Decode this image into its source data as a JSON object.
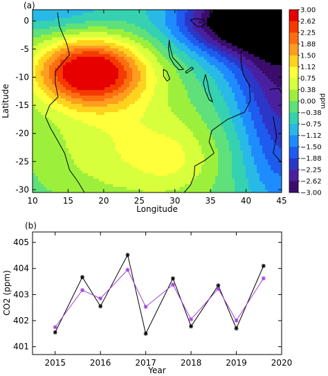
{
  "chart_data": [
    {
      "type": "heatmap",
      "panel_label": "(a)",
      "xlabel": "Longitude",
      "ylabel": "Latitude",
      "xlim": [
        10,
        45
      ],
      "ylim": [
        -30.5,
        2
      ],
      "x_ticks": [
        10,
        15,
        20,
        25,
        30,
        35,
        40,
        45
      ],
      "y_ticks": [
        0,
        -5,
        -10,
        -15,
        -20,
        -25,
        -30
      ],
      "colorbar": {
        "label": "ppm",
        "levels": [
          3.0,
          2.62,
          2.25,
          1.88,
          1.5,
          1.12,
          0.75,
          0.38,
          0.0,
          -0.38,
          -0.75,
          -1.12,
          -1.5,
          -1.88,
          -2.25,
          -2.62,
          -3.0
        ],
        "tick_labels": [
          "3.00",
          "2.62",
          "2.25",
          "1.88",
          "1.50",
          "1.12",
          "0.75",
          "0.38",
          "0.00",
          "−0.38",
          "−0.75",
          "−1.12",
          "−1.50",
          "−1.88",
          "−2.25",
          "−2.62",
          "−3.00"
        ],
        "colors": [
          "#e60000",
          "#f53a00",
          "#fd6e10",
          "#ff9d1e",
          "#ffd21e",
          "#ffff3c",
          "#d8ff3c",
          "#9cf03c",
          "#5fe07a",
          "#35d1b0",
          "#28b9e6",
          "#1e8cff",
          "#1e5cf0",
          "#2a37c8",
          "#4a20a0",
          "#3a0d6c",
          "#000000"
        ]
      },
      "field": {
        "baseline": -0.3,
        "features": [
          {
            "lon": 18,
            "lat": -9,
            "amp": 3.5,
            "sx": 5.5,
            "sy": 4.2
          },
          {
            "lon": 23,
            "lat": -22,
            "amp": 1.0,
            "sx": 9,
            "sy": 8
          },
          {
            "lon": 30,
            "lat": -25,
            "amp": 0.5,
            "sx": 4,
            "sy": 4
          },
          {
            "lon": 38,
            "lat": 0,
            "amp": -2.6,
            "sx": 6,
            "sy": 4
          },
          {
            "lon": 45,
            "lat": -3,
            "amp": -2.3,
            "sx": 6,
            "sy": 10
          },
          {
            "lon": 45,
            "lat": -22,
            "amp": -1.3,
            "sx": 4,
            "sy": 10
          },
          {
            "lon": 12,
            "lat": 2,
            "amp": -0.8,
            "sx": 8,
            "sy": 3
          }
        ]
      },
      "coastlines": [
        [
          [
            13.5,
            1.5
          ],
          [
            13.8,
            -1
          ],
          [
            14.8,
            -4
          ],
          [
            15.2,
            -6
          ],
          [
            14.2,
            -7.5
          ],
          [
            13.2,
            -9
          ],
          [
            13.2,
            -11
          ],
          [
            13.6,
            -13.5
          ],
          [
            12.4,
            -15
          ],
          [
            11.8,
            -17
          ],
          [
            12.5,
            -19
          ],
          [
            13.4,
            -21
          ],
          [
            14.5,
            -23.5
          ],
          [
            15.2,
            -26.5
          ],
          [
            16.4,
            -28.6
          ],
          [
            17.3,
            -30.5
          ]
        ],
        [
          [
            44.3,
            -0.5
          ],
          [
            43,
            -2
          ],
          [
            41.6,
            -2.8
          ],
          [
            40.3,
            -4.2
          ],
          [
            39.3,
            -5.5
          ],
          [
            39.3,
            -7.4
          ],
          [
            39.6,
            -9.5
          ],
          [
            40.5,
            -11.5
          ],
          [
            40.6,
            -14.2
          ],
          [
            39.8,
            -16.2
          ],
          [
            37.4,
            -17.5
          ],
          [
            35.2,
            -19.5
          ],
          [
            34.8,
            -21.5
          ],
          [
            35.5,
            -23.5
          ],
          [
            34.2,
            -24.8
          ],
          [
            32.8,
            -25.8
          ],
          [
            32.7,
            -27.5
          ],
          [
            32.2,
            -29.2
          ],
          [
            31.3,
            -30.5
          ]
        ],
        [
          [
            43.3,
            -12.2
          ],
          [
            44.6,
            -12
          ],
          [
            45,
            -12.8
          ]
        ],
        [
          [
            43.8,
            -17
          ],
          [
            44.3,
            -20.5
          ],
          [
            43.8,
            -23.5
          ],
          [
            45,
            -25.2
          ]
        ],
        [
          [
            32.2,
            0.2
          ],
          [
            32.6,
            -0.4
          ],
          [
            33.2,
            -1
          ],
          [
            33.8,
            -1
          ],
          [
            34.3,
            -0.5
          ],
          [
            34,
            0.2
          ],
          [
            33.2,
            0.4
          ],
          [
            32.5,
            0.3
          ],
          [
            32.2,
            0.2
          ]
        ],
        [
          [
            29.2,
            -3.4
          ],
          [
            29.4,
            -5
          ],
          [
            29.7,
            -6.5
          ],
          [
            30.5,
            -7.6
          ],
          [
            31.2,
            -8.6
          ],
          [
            30.6,
            -8.7
          ],
          [
            29.9,
            -7.8
          ],
          [
            29.3,
            -6.5
          ],
          [
            29.1,
            -5
          ],
          [
            29.2,
            -3.4
          ]
        ],
        [
          [
            34.3,
            -9.5
          ],
          [
            34.6,
            -11
          ],
          [
            34.8,
            -12.5
          ],
          [
            35.3,
            -14.4
          ],
          [
            34.8,
            -14
          ],
          [
            34.3,
            -12.5
          ],
          [
            34,
            -11
          ],
          [
            34.3,
            -9.5
          ]
        ],
        [
          [
            28.4,
            -8.6
          ],
          [
            28.9,
            -9
          ],
          [
            29.3,
            -10.3
          ],
          [
            28.9,
            -10.7
          ],
          [
            28.4,
            -9.8
          ],
          [
            28.4,
            -8.6
          ]
        ],
        [
          [
            31.5,
            -9
          ],
          [
            32.4,
            -8.2
          ],
          [
            32.6,
            -8.5
          ],
          [
            31.6,
            -9.3
          ],
          [
            31.5,
            -9
          ]
        ]
      ]
    },
    {
      "type": "line",
      "panel_label": "(b)",
      "xlabel": "Year",
      "ylabel": "CO2 (ppm)",
      "xlim": [
        2014.5,
        2020
      ],
      "ylim": [
        400.7,
        405.4
      ],
      "x_ticks": [
        2015,
        2016,
        2017,
        2018,
        2019,
        2020
      ],
      "y_ticks": [
        401,
        402,
        403,
        404,
        405
      ],
      "series": [
        {
          "color": "#000000",
          "x": [
            2015.0,
            2015.6,
            2016.0,
            2016.6,
            2017.0,
            2017.6,
            2018.0,
            2018.6,
            2019.0,
            2019.6
          ],
          "y": [
            401.55,
            403.67,
            402.55,
            404.52,
            401.5,
            403.62,
            401.78,
            403.35,
            401.7,
            404.1
          ]
        },
        {
          "color": "#a040d8",
          "x": [
            2015.0,
            2015.6,
            2016.0,
            2016.6,
            2017.0,
            2017.6,
            2018.0,
            2018.6,
            2019.0,
            2019.6
          ],
          "y": [
            401.75,
            403.17,
            402.85,
            403.95,
            402.53,
            403.38,
            402.05,
            403.22,
            402.0,
            403.62
          ]
        }
      ]
    }
  ]
}
